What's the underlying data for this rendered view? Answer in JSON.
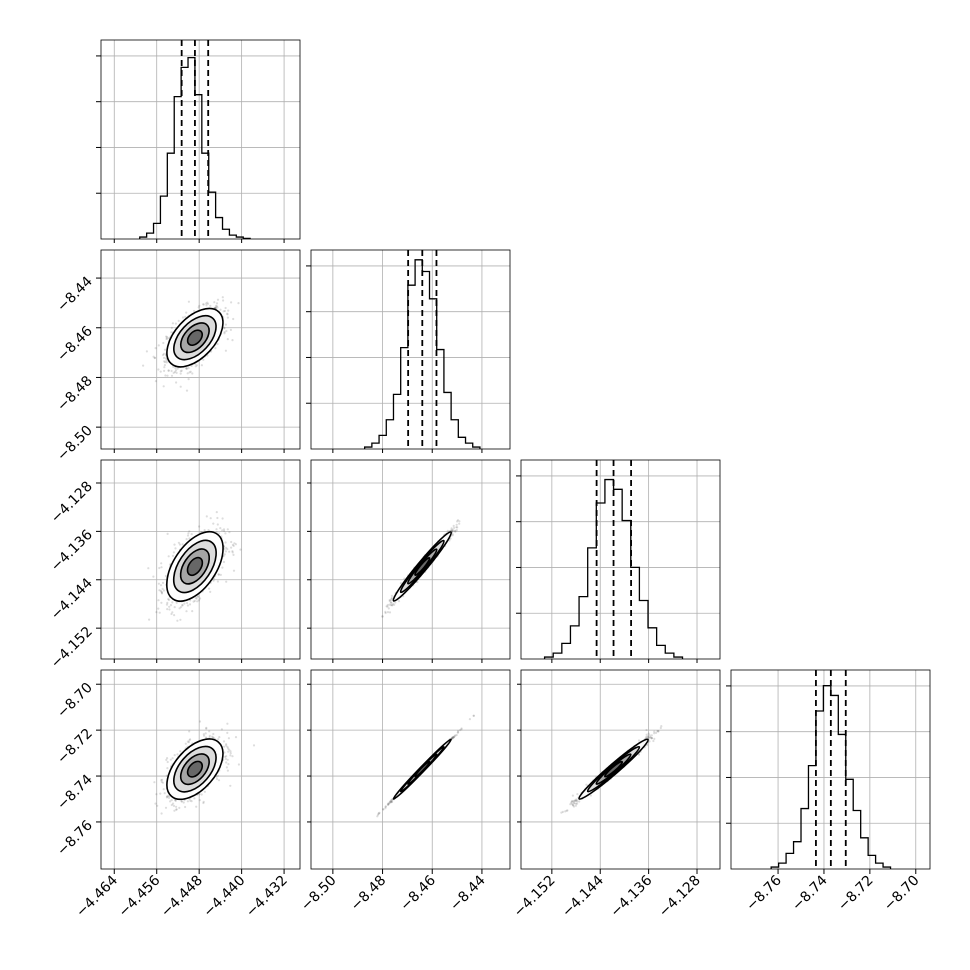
{
  "chart_data": {
    "type": "scatter",
    "variant": "corner-plot",
    "title": "",
    "grid": true,
    "colors": {
      "line": "#000000",
      "scatter": "#666666",
      "grid": "#b0b0b0"
    },
    "parameters": [
      {
        "index": 0,
        "range": [
          -4.4665,
          -4.429
        ],
        "median": -4.4488,
        "q16": -4.4513,
        "q84": -4.4463,
        "sigma": 0.0026,
        "ticks": [
          {
            "value": -4.464,
            "label": "−4.464"
          },
          {
            "value": -4.456,
            "label": "−4.456"
          },
          {
            "value": -4.448,
            "label": "−4.448"
          },
          {
            "value": -4.44,
            "label": "−4.440"
          },
          {
            "value": -4.432,
            "label": "−4.432"
          }
        ]
      },
      {
        "index": 1,
        "range": [
          -8.5088,
          -8.4287
        ],
        "median": -8.464,
        "q16": -8.4697,
        "q84": -8.4583,
        "sigma": 0.0058,
        "ticks": [
          {
            "value": -8.5,
            "label": "−8.50"
          },
          {
            "value": -8.48,
            "label": "−8.48"
          },
          {
            "value": -8.46,
            "label": "−8.46"
          },
          {
            "value": -8.44,
            "label": "−8.44"
          }
        ]
      },
      {
        "index": 2,
        "range": [
          -4.1571,
          -4.1242
        ],
        "median": -4.1418,
        "q16": -4.1446,
        "q84": -4.1389,
        "sigma": 0.00285,
        "ticks": [
          {
            "value": -4.152,
            "label": "−4.152"
          },
          {
            "value": -4.144,
            "label": "−4.144"
          },
          {
            "value": -4.136,
            "label": "−4.136"
          },
          {
            "value": -4.128,
            "label": "−4.128"
          }
        ]
      },
      {
        "index": 3,
        "range": [
          -8.7805,
          -8.6938
        ],
        "median": -8.737,
        "q16": -8.7435,
        "q84": -8.7305,
        "sigma": 0.0065,
        "ticks": [
          {
            "value": -8.76,
            "label": "−8.76"
          },
          {
            "value": -8.74,
            "label": "−8.74"
          },
          {
            "value": -8.72,
            "label": "−8.72"
          },
          {
            "value": -8.7,
            "label": "−8.70"
          }
        ]
      }
    ],
    "histograms": [
      {
        "param": 0,
        "normalized_counts": [
          0.01,
          0.03,
          0.08,
          0.22,
          0.44,
          0.73,
          0.88,
          0.93,
          0.74,
          0.44,
          0.24,
          0.11,
          0.05,
          0.02,
          0.01,
          0.003
        ]
      },
      {
        "param": 1,
        "normalized_counts": [
          0.01,
          0.03,
          0.07,
          0.15,
          0.28,
          0.52,
          0.84,
          0.97,
          0.91,
          0.77,
          0.51,
          0.29,
          0.15,
          0.06,
          0.03,
          0.01
        ]
      },
      {
        "param": 2,
        "normalized_counts": [
          0.01,
          0.03,
          0.08,
          0.17,
          0.32,
          0.57,
          0.8,
          0.92,
          0.87,
          0.71,
          0.47,
          0.3,
          0.16,
          0.07,
          0.03,
          0.01
        ]
      },
      {
        "param": 3,
        "normalized_counts": [
          0.01,
          0.03,
          0.08,
          0.14,
          0.31,
          0.53,
          0.81,
          0.94,
          0.89,
          0.69,
          0.46,
          0.3,
          0.16,
          0.07,
          0.03,
          0.01
        ]
      }
    ],
    "correlations": [
      {
        "params": [
          0,
          1
        ],
        "rho": 0.55
      },
      {
        "params": [
          0,
          2
        ],
        "rho": 0.55
      },
      {
        "params": [
          0,
          3
        ],
        "rho": 0.55
      },
      {
        "params": [
          1,
          2
        ],
        "rho": 0.985
      },
      {
        "params": [
          1,
          3
        ],
        "rho": 0.999
      },
      {
        "params": [
          2,
          3
        ],
        "rho": 0.985
      }
    ]
  }
}
